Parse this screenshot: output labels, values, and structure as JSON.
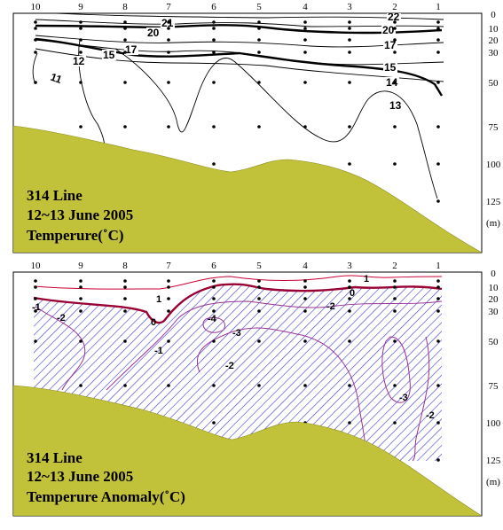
{
  "chart_data": [
    {
      "type": "contour",
      "panel": "temperature",
      "caption": [
        "314 Line",
        "12~13 June 2005",
        "Temperure(˚C)"
      ],
      "stations": [
        "10",
        "9",
        "8",
        "7",
        "6",
        "5",
        "4",
        "3",
        "2",
        "1"
      ],
      "depth_ticks": [
        "0",
        "10",
        "20",
        "30",
        "50",
        "75",
        "100",
        "125"
      ],
      "depth_unit": "(m)",
      "depth_range": [
        0,
        150
      ],
      "contour_levels": [
        11,
        12,
        13,
        14,
        15,
        17,
        20,
        21,
        22
      ],
      "contour_labels": [
        "11",
        "12",
        "13",
        "14",
        "15",
        "17",
        "20",
        "21",
        "22"
      ],
      "colors": {
        "seafloor": "#c2c23a",
        "contour": "#000000",
        "bold_contour": "#000000"
      }
    },
    {
      "type": "contour",
      "panel": "temperature_anomaly",
      "caption": [
        "314 Line",
        "12~13 June 2005",
        "Temperure Anomaly(˚C)"
      ],
      "stations": [
        "10",
        "9",
        "8",
        "7",
        "6",
        "5",
        "4",
        "3",
        "2",
        "1"
      ],
      "depth_ticks": [
        "0",
        "10",
        "20",
        "30",
        "50",
        "75",
        "100",
        "125"
      ],
      "depth_unit": "(m)",
      "depth_range": [
        0,
        150
      ],
      "contour_levels": [
        -4,
        -3,
        -2,
        -1,
        0,
        1
      ],
      "contour_labels": [
        "1",
        "0",
        "-1",
        "-2",
        "-3",
        "-4",
        "1",
        "0",
        "-2",
        "-1",
        "-3",
        "-2"
      ],
      "negative_region_hatched": true,
      "colors": {
        "seafloor": "#c2c23a",
        "positive_contour": "#cc0033",
        "zero_contour": "#990033",
        "negative_contour": "#993399",
        "hatch": "#3333cc"
      }
    }
  ]
}
